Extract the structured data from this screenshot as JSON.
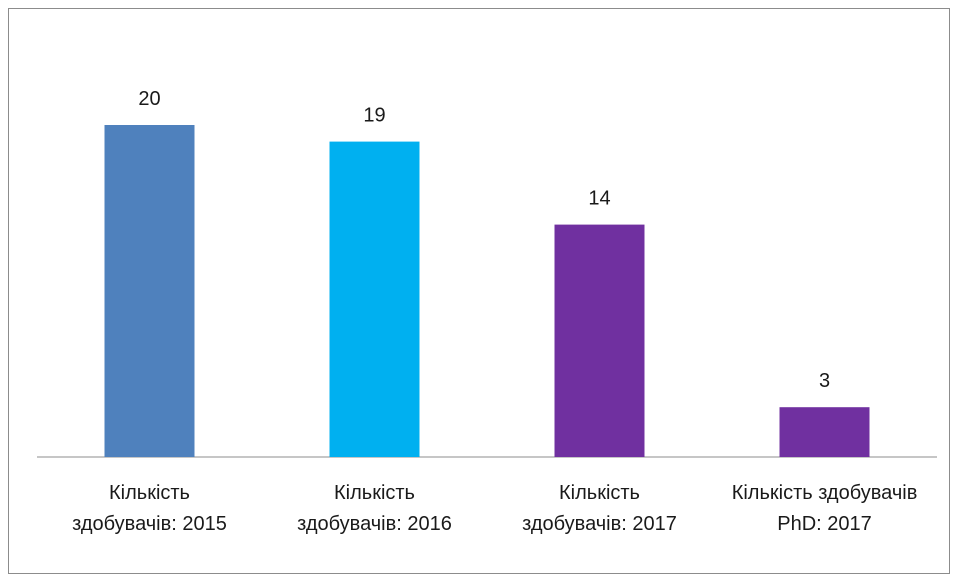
{
  "chart_data": {
    "type": "bar",
    "categories": [
      "Кількість здобувачів: 2015",
      "Кількість здобувачів: 2016",
      "Кількість здобувачів: 2017",
      "Кількість здобувачів PhD: 2017"
    ],
    "values": [
      20,
      19,
      14,
      3
    ],
    "colors": [
      "#4f81bd",
      "#00b0f0",
      "#7030a0",
      "#7030a0"
    ]
  }
}
